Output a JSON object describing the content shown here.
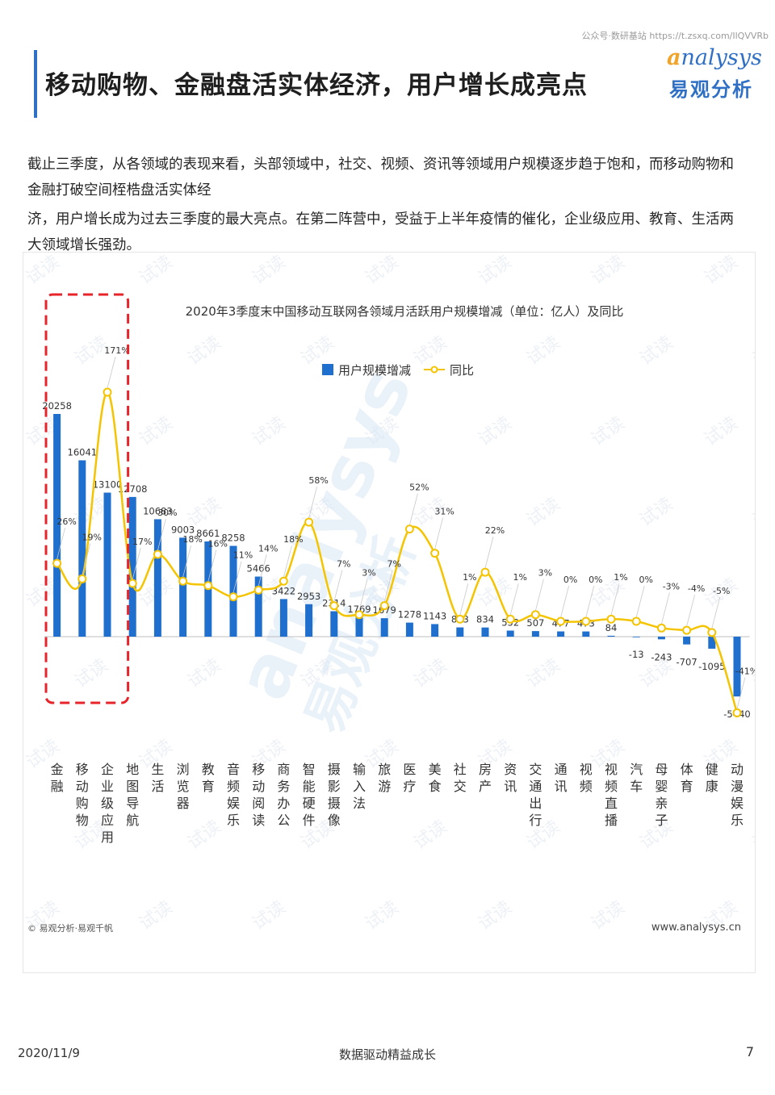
{
  "header": {
    "note": "公众号·数研基站 https://t.zsxq.com/IlQVVRb",
    "title": "移动购物、金融盘活实体经济，用户增长成亮点",
    "brand_en_a": "a",
    "brand_en_rest": "nalysys",
    "brand_cn": "易观分析"
  },
  "summary": {
    "line1": "截止三季度，从各领域的表现来看，头部领域中，社交、视频、资讯等领域用户规模逐步趋于饱和，而移动购物和金融打破空间桎梏盘活实体经",
    "line2": "济，用户增长成为过去三季度的最大亮点。在第二阵营中，受益于上半年疫情的催化，企业级应用、教育、生活两大领域增长强劲。"
  },
  "chart_data": {
    "type": "bar",
    "title": "2020年3季度末中国移动互联网各领域月活跃用户规模增减（单位：亿人）及同比",
    "legend": [
      "用户规模增减",
      "同比"
    ],
    "legend_position": "top-center",
    "categories": [
      "金融",
      "移动购物",
      "企业级应用",
      "地图导航",
      "生活",
      "浏览器",
      "教育",
      "音频娱乐",
      "移动阅读",
      "商务办公",
      "智能硬件",
      "摄影摄像",
      "输入法",
      "旅游",
      "医疗",
      "美食",
      "社交",
      "房产",
      "资讯",
      "交通出行",
      "通讯",
      "视频",
      "视频直播",
      "汽车",
      "母婴亲子",
      "体育",
      "健康",
      "动漫娱乐"
    ],
    "series": [
      {
        "name": "用户规模增减",
        "type": "bar",
        "color": "#1f6fce",
        "values": [
          20258,
          16041,
          13100,
          12708,
          10683,
          9003,
          8661,
          8258,
          5466,
          3422,
          2953,
          2314,
          1769,
          1679,
          1278,
          1143,
          843,
          834,
          552,
          507,
          477,
          473,
          84,
          -13,
          -243,
          -707,
          -1095,
          -5440
        ]
      },
      {
        "name": "同比",
        "type": "line",
        "color": "#f5c400",
        "labels": [
          "26%",
          "19%",
          "171%",
          "17%",
          "30%",
          "18%",
          "16%",
          "11%",
          "14%",
          "18%",
          "58%",
          "7%",
          "3%",
          "7%",
          "52%",
          "31%",
          "1%",
          "22%",
          "1%",
          "3%",
          "0%",
          "0%",
          "1%",
          "0%",
          "-3%",
          "-4%",
          "-5%",
          "-41%"
        ],
        "values": [
          26,
          19,
          171,
          17,
          30,
          18,
          16,
          11,
          14,
          18,
          58,
          7,
          3,
          7,
          52,
          31,
          1,
          22,
          1,
          3,
          0,
          0,
          1,
          0,
          -3,
          -4,
          -5,
          -41
        ]
      }
    ],
    "highlight_categories": [
      "金融",
      "移动购物",
      "企业级应用"
    ],
    "highlight_color": "#e8242b",
    "grid": false
  },
  "watermarks": {
    "tile": "试读",
    "big_en": "analysys",
    "big_cn": "易观分析"
  },
  "footer": {
    "source": "© 易观分析·易观千帆",
    "website": "www.analysys.cn",
    "date": "2020/11/9",
    "center": "数据驱动精益成长",
    "page": "7"
  }
}
